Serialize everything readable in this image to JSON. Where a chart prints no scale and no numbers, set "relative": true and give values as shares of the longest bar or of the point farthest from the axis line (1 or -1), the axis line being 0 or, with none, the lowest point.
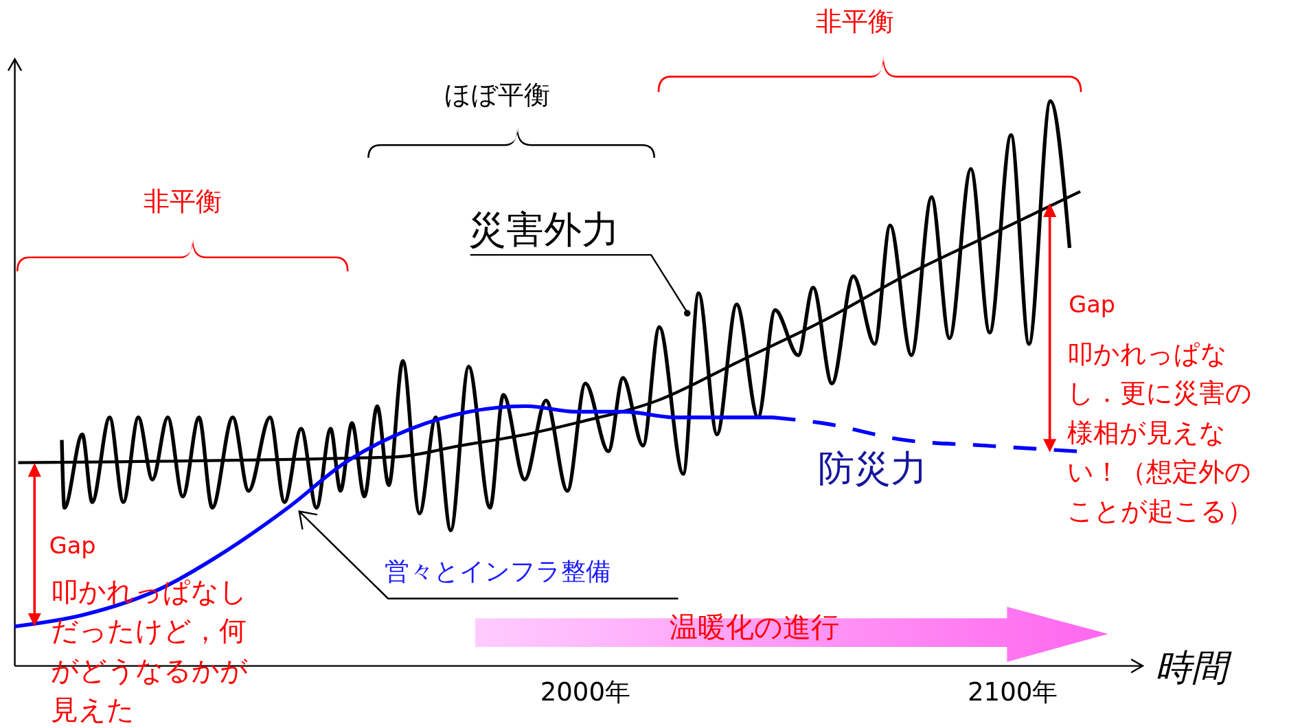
{
  "chart_data": {
    "type": "line",
    "relative": true,
    "xlabel": "時間",
    "xlim": [
      1866.5,
      2130.4
    ],
    "xticks": [
      {
        "value": 2000,
        "label": "2000年"
      },
      {
        "value": 2100,
        "label": "2100年"
      }
    ],
    "series": [
      {
        "name": "災害外力",
        "color": "#000000",
        "x": [
          1877.5,
          1878.1,
          1882.3,
          1884.6,
          1888.7,
          1891.9,
          1895.4,
          1898.7,
          1902.3,
          1905.8,
          1909.6,
          1912.7,
          1917.5,
          1921.2,
          1926.2,
          1929.6,
          1933.5,
          1937.1,
          1940.4,
          1942.7,
          1945.4,
          1948.3,
          1951.3,
          1954.0,
          1957.3,
          1961.2,
          1965.0,
          1968.5,
          1972.7,
          1977.7,
          1980.8,
          1985.8,
          1990.8,
          1995.8,
          2000.0,
          2005.4,
          2008.8,
          2013.5,
          2017.3,
          2022.9,
          2026.5,
          2030.8,
          2035.4,
          2040.4,
          2044.4,
          2049.8,
          2053.3,
          2057.7,
          2062.7,
          2067.7,
          2071.3,
          2076.3,
          2081.0,
          2085.2,
          2090.2,
          2094.6,
          2099.6,
          2103.8,
          2108.8,
          2113.3
        ],
        "values": [
          0.4,
          0.28,
          0.41,
          0.29,
          0.44,
          0.29,
          0.44,
          0.33,
          0.44,
          0.3,
          0.44,
          0.28,
          0.44,
          0.31,
          0.44,
          0.29,
          0.42,
          0.28,
          0.42,
          0.31,
          0.43,
          0.3,
          0.46,
          0.32,
          0.54,
          0.27,
          0.44,
          0.24,
          0.53,
          0.28,
          0.48,
          0.33,
          0.47,
          0.31,
          0.5,
          0.38,
          0.51,
          0.39,
          0.6,
          0.34,
          0.66,
          0.41,
          0.64,
          0.44,
          0.63,
          0.55,
          0.67,
          0.5,
          0.69,
          0.57,
          0.78,
          0.55,
          0.83,
          0.58,
          0.88,
          0.59,
          0.94,
          0.57,
          1.0,
          0.74
        ]
      },
      {
        "color": "#000000",
        "x": [
          1867.3,
          1955.4,
          1970.8,
          1986.2,
          1997.7,
          2016.9,
          2036.2,
          2055.4,
          2074.6,
          2093.8,
          2115.8
        ],
        "values": [
          0.36,
          0.37,
          0.39,
          0.41,
          0.43,
          0.47,
          0.54,
          0.61,
          0.69,
          0.76,
          0.84
        ]
      },
      {
        "color": "#0000ff",
        "x": [
          1866.5,
          1882.3,
          1901.5,
          1913.1,
          1930.4,
          1943.8,
          1959.2,
          1972.7,
          1986.2,
          1997.7,
          2009.2,
          2020.8,
          2032.3,
          2043.8
        ],
        "values": [
          0.07,
          0.09,
          0.14,
          0.19,
          0.28,
          0.36,
          0.42,
          0.45,
          0.46,
          0.45,
          0.45,
          0.44,
          0.44,
          0.44
        ]
      },
      {
        "name": "防災力",
        "color": "#0000ff",
        "line_style": "dashed",
        "x": [
          2043.8,
          2055.4,
          2074.6,
          2093.8,
          2115.0
        ],
        "values": [
          0.44,
          0.43,
          0.4,
          0.39,
          0.38
        ]
      }
    ],
    "annotations": [
      "営々とインフラ整備",
      "非平衡",
      "ほぼ平衡",
      "非平衡",
      "Gap",
      "叩かれっぱなしだったけど，何がどうなるかが見えた",
      "Gap",
      "叩かれっぱなし．更に災害の様相が見えない！（想定外のことが起こる）",
      "温暖化の進行"
    ]
  }
}
